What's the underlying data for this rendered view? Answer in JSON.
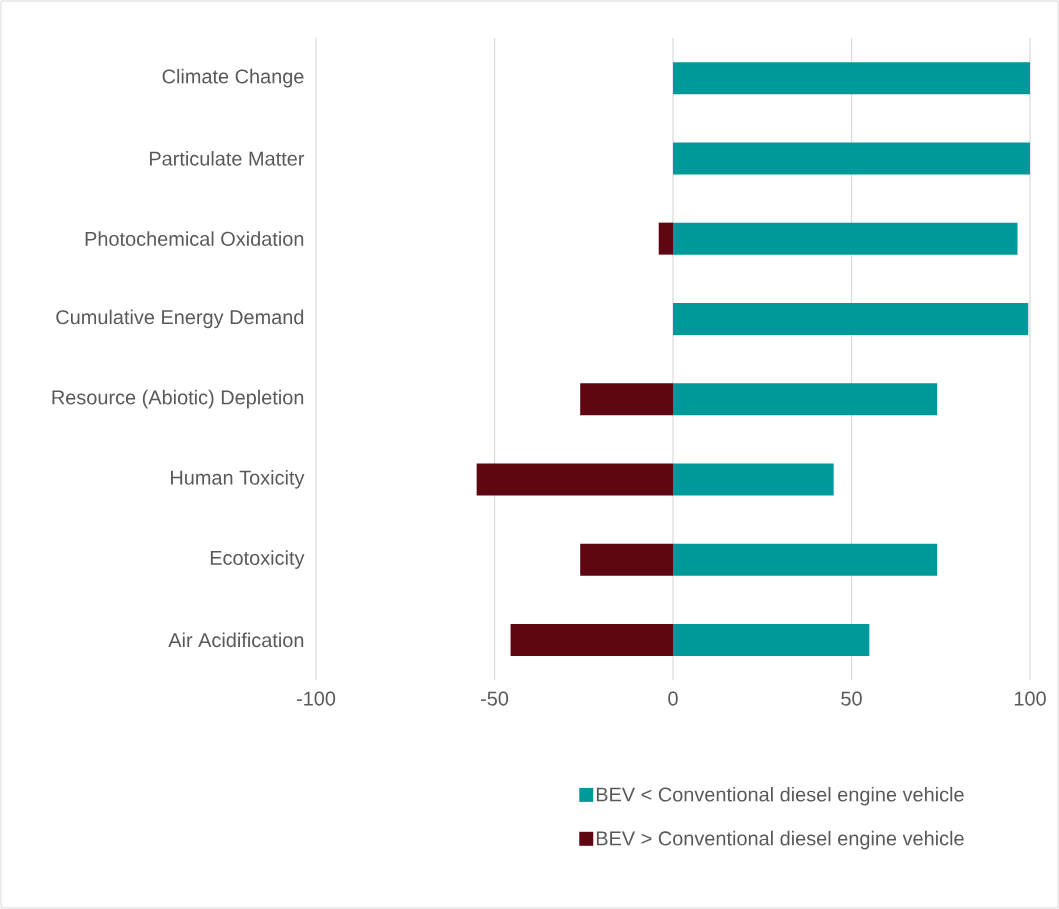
{
  "chart_data": {
    "type": "bar",
    "orientation": "horizontal",
    "stacked": true,
    "categories": [
      "Climate Change",
      "Particulate Matter",
      "Photochemical Oxidation",
      "Cumulative Energy Demand",
      "Resource (Abiotic) Depletion",
      "Human Toxicity",
      "Ecotoxicity",
      "Air Acidification"
    ],
    "series": [
      {
        "name": "BEV < Conventional diesel engine vehicle",
        "color": "#009999",
        "values": [
          100,
          100,
          96.5,
          99.5,
          74,
          45,
          74,
          55
        ]
      },
      {
        "name": "BEV > Conventional diesel engine vehicle",
        "color": "#5e0612",
        "values": [
          null,
          null,
          -4,
          null,
          -26,
          -55,
          -26,
          -45.5
        ]
      }
    ],
    "xlim": [
      -100,
      100
    ],
    "xticks": [
      -100,
      -50,
      0,
      50,
      100
    ],
    "grid": "x",
    "legend": "bottom"
  }
}
